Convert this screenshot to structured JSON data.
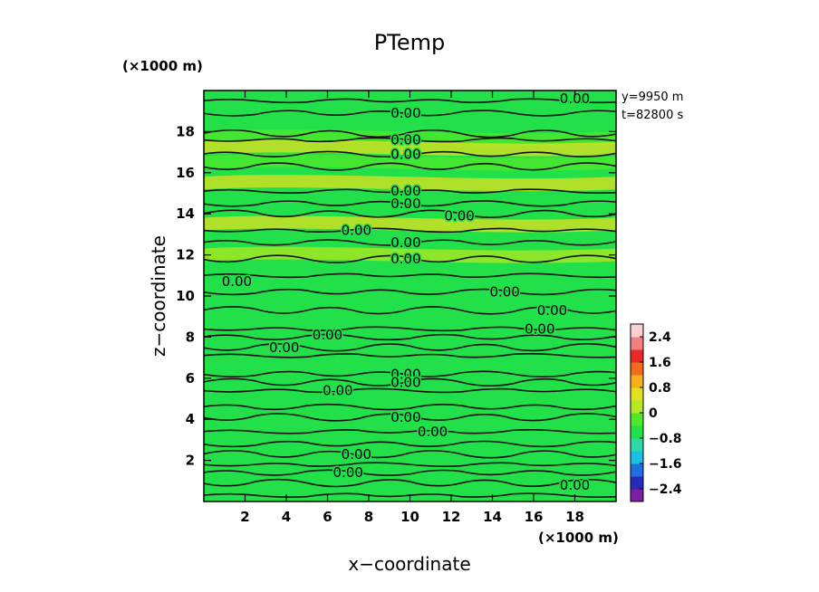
{
  "chart_data": {
    "type": "heatmap",
    "title": "PTemp",
    "xlabel": "x−coordinate",
    "ylabel": "z−coordinate",
    "x_unit": "(×1000 m)",
    "y_unit": "(×1000 m)",
    "xlim": [
      0,
      20
    ],
    "ylim": [
      0,
      20
    ],
    "x_ticks": [
      2,
      4,
      6,
      8,
      10,
      12,
      14,
      16,
      18
    ],
    "y_ticks": [
      2,
      4,
      6,
      8,
      10,
      12,
      14,
      16,
      18
    ],
    "info": [
      "y=9950  m",
      "t=82800  s"
    ],
    "colorbar": {
      "ticks": [
        "2.4",
        "1.6",
        "0.8",
        "0",
        "−0.8",
        "−1.6",
        "−2.4"
      ],
      "tick_values": [
        2.4,
        1.6,
        0.8,
        0,
        -0.8,
        -1.6,
        -2.4
      ],
      "range": [
        -2.8,
        2.8
      ],
      "colors": [
        "#7a1fa2",
        "#2a2ab8",
        "#1f6fe0",
        "#17c3e0",
        "#2fd9a6",
        "#21e04a",
        "#4fe82a",
        "#b3e822",
        "#e0e020",
        "#f5b21c",
        "#f26a1c",
        "#e82a2a",
        "#f28080",
        "#fbd0d0"
      ]
    },
    "bands": [
      {
        "z": 18.2,
        "value": -0.7
      },
      {
        "z": 17.7,
        "value": -0.3
      },
      {
        "z": 17.2,
        "value": 0.7
      },
      {
        "z": 16.5,
        "value": -0.2
      },
      {
        "z": 15.5,
        "value": 0.6
      },
      {
        "z": 13.5,
        "value": 0.4
      },
      {
        "z": 12.0,
        "value": 0.2
      }
    ],
    "contour_labels": [
      {
        "x": 18.0,
        "z": 19.6,
        "text": "0.00"
      },
      {
        "x": 9.8,
        "z": 18.9,
        "text": "0.00"
      },
      {
        "x": 9.8,
        "z": 17.6,
        "text": "0.00"
      },
      {
        "x": 9.8,
        "z": 16.9,
        "text": "0.00"
      },
      {
        "x": 9.8,
        "z": 15.1,
        "text": "0.00"
      },
      {
        "x": 9.8,
        "z": 14.5,
        "text": "0.00"
      },
      {
        "x": 12.4,
        "z": 13.9,
        "text": "0.00"
      },
      {
        "x": 7.4,
        "z": 13.2,
        "text": "0.00"
      },
      {
        "x": 9.8,
        "z": 12.6,
        "text": "0.00"
      },
      {
        "x": 9.8,
        "z": 11.8,
        "text": "0.00"
      },
      {
        "x": 1.6,
        "z": 10.7,
        "text": "0.00"
      },
      {
        "x": 14.6,
        "z": 10.2,
        "text": "0.00"
      },
      {
        "x": 16.9,
        "z": 9.3,
        "text": "0.00"
      },
      {
        "x": 16.3,
        "z": 8.4,
        "text": "0.00"
      },
      {
        "x": 6.0,
        "z": 8.1,
        "text": "0.00"
      },
      {
        "x": 3.9,
        "z": 7.5,
        "text": "0.00"
      },
      {
        "x": 9.8,
        "z": 6.2,
        "text": "0.00"
      },
      {
        "x": 9.8,
        "z": 5.8,
        "text": "0.00"
      },
      {
        "x": 6.5,
        "z": 5.4,
        "text": "0.00"
      },
      {
        "x": 9.8,
        "z": 4.1,
        "text": "0.00"
      },
      {
        "x": 11.1,
        "z": 3.4,
        "text": "0.00"
      },
      {
        "x": 7.4,
        "z": 2.3,
        "text": "0.00"
      },
      {
        "x": 7.0,
        "z": 1.4,
        "text": "0.00"
      },
      {
        "x": 18.0,
        "z": 0.8,
        "text": "0.00"
      }
    ],
    "contour_levels": [
      19.5,
      18.9,
      17.9,
      17.6,
      16.9,
      16.3,
      15.1,
      14.5,
      14.0,
      13.2,
      12.6,
      11.8,
      11.0,
      10.2,
      9.3,
      8.4,
      8.0,
      7.5,
      7.1,
      6.2,
      5.8,
      5.4,
      4.6,
      4.1,
      3.4,
      2.8,
      2.3,
      1.8,
      1.4,
      0.9,
      0.3
    ]
  }
}
